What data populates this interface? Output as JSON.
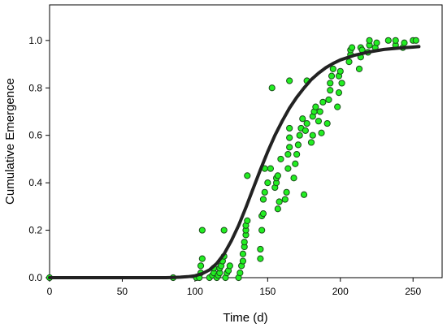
{
  "chart_data": {
    "type": "scatter",
    "title": "",
    "xlabel": "Time (d)",
    "ylabel": "Cumulative Emergence",
    "xlim": [
      0,
      270
    ],
    "ylim": [
      0,
      1.15
    ],
    "x_ticks": [
      0,
      50,
      100,
      150,
      200,
      250
    ],
    "x_tick_labels": [
      "0",
      "50",
      "100",
      "150",
      "200",
      "250"
    ],
    "y_ticks": [
      0,
      0.2,
      0.4,
      0.6,
      0.8,
      1.0
    ],
    "y_tick_labels": [
      "0.0",
      "0.2",
      "0.4",
      "0.6",
      "0.8",
      "1.0"
    ],
    "grid": false,
    "colors": {
      "points_fill": "#22ee22",
      "points_stroke": "#1a4d1a",
      "curve": "#222222"
    },
    "series": [
      {
        "kind": "points",
        "points": [
          [
            0,
            0.0
          ],
          [
            85,
            0.0
          ],
          [
            101,
            0.0
          ],
          [
            103,
            0.0
          ],
          [
            104,
            0.02
          ],
          [
            104,
            0.05
          ],
          [
            105,
            0.08
          ],
          [
            105,
            0.2
          ],
          [
            110,
            0.0
          ],
          [
            112,
            0.01
          ],
          [
            113,
            0.02
          ],
          [
            113,
            0.04
          ],
          [
            115,
            0.0
          ],
          [
            116,
            0.01
          ],
          [
            117,
            0.02
          ],
          [
            117,
            0.04
          ],
          [
            118,
            0.05
          ],
          [
            119,
            0.07
          ],
          [
            120,
            0.09
          ],
          [
            120,
            0.2
          ],
          [
            121,
            0.0
          ],
          [
            122,
            0.02
          ],
          [
            123,
            0.03
          ],
          [
            124,
            0.05
          ],
          [
            130,
            0.0
          ],
          [
            131,
            0.02
          ],
          [
            132,
            0.05
          ],
          [
            133,
            0.07
          ],
          [
            133,
            0.1
          ],
          [
            134,
            0.13
          ],
          [
            134,
            0.15
          ],
          [
            135,
            0.18
          ],
          [
            135,
            0.2
          ],
          [
            135,
            0.22
          ],
          [
            136,
            0.24
          ],
          [
            136,
            0.43
          ],
          [
            145,
            0.08
          ],
          [
            145,
            0.12
          ],
          [
            146,
            0.2
          ],
          [
            146,
            0.26
          ],
          [
            147,
            0.27
          ],
          [
            147,
            0.33
          ],
          [
            148,
            0.36
          ],
          [
            148,
            0.46
          ],
          [
            150,
            0.4
          ],
          [
            152,
            0.46
          ],
          [
            153,
            0.8
          ],
          [
            155,
            0.38
          ],
          [
            156,
            0.4
          ],
          [
            156,
            0.42
          ],
          [
            157,
            0.43
          ],
          [
            157,
            0.29
          ],
          [
            158,
            0.32
          ],
          [
            159,
            0.5
          ],
          [
            162,
            0.33
          ],
          [
            163,
            0.36
          ],
          [
            164,
            0.46
          ],
          [
            164,
            0.52
          ],
          [
            165,
            0.55
          ],
          [
            165,
            0.59
          ],
          [
            165,
            0.63
          ],
          [
            165,
            0.83
          ],
          [
            168,
            0.42
          ],
          [
            169,
            0.48
          ],
          [
            170,
            0.52
          ],
          [
            171,
            0.56
          ],
          [
            172,
            0.6
          ],
          [
            173,
            0.63
          ],
          [
            174,
            0.67
          ],
          [
            175,
            0.35
          ],
          [
            176,
            0.62
          ],
          [
            177,
            0.65
          ],
          [
            177,
            0.83
          ],
          [
            180,
            0.57
          ],
          [
            181,
            0.6
          ],
          [
            181,
            0.68
          ],
          [
            182,
            0.7
          ],
          [
            183,
            0.72
          ],
          [
            185,
            0.66
          ],
          [
            186,
            0.7
          ],
          [
            187,
            0.61
          ],
          [
            188,
            0.74
          ],
          [
            191,
            0.65
          ],
          [
            192,
            0.75
          ],
          [
            193,
            0.79
          ],
          [
            193,
            0.82
          ],
          [
            194,
            0.85
          ],
          [
            195,
            0.88
          ],
          [
            198,
            0.72
          ],
          [
            199,
            0.78
          ],
          [
            199,
            0.85
          ],
          [
            200,
            0.87
          ],
          [
            201,
            0.82
          ],
          [
            206,
            0.91
          ],
          [
            207,
            0.94
          ],
          [
            207,
            0.96
          ],
          [
            208,
            0.97
          ],
          [
            213,
            0.88
          ],
          [
            214,
            0.93
          ],
          [
            214,
            0.97
          ],
          [
            215,
            0.96
          ],
          [
            219,
            0.95
          ],
          [
            220,
            0.98
          ],
          [
            220,
            1.0
          ],
          [
            224,
            0.97
          ],
          [
            225,
            0.99
          ],
          [
            233,
            1.0
          ],
          [
            238,
            0.98
          ],
          [
            238,
            1.0
          ],
          [
            243,
            0.97
          ],
          [
            244,
            0.99
          ],
          [
            250,
            1.0
          ],
          [
            252,
            1.0
          ]
        ]
      },
      {
        "kind": "curve",
        "points": [
          [
            0,
            0.0
          ],
          [
            80,
            0.0
          ],
          [
            85,
            0.001
          ],
          [
            90,
            0.002
          ],
          [
            95,
            0.004
          ],
          [
            100,
            0.008
          ],
          [
            105,
            0.017
          ],
          [
            110,
            0.033
          ],
          [
            115,
            0.06
          ],
          [
            120,
            0.1
          ],
          [
            125,
            0.155
          ],
          [
            130,
            0.22
          ],
          [
            135,
            0.295
          ],
          [
            140,
            0.375
          ],
          [
            145,
            0.455
          ],
          [
            150,
            0.53
          ],
          [
            155,
            0.6
          ],
          [
            160,
            0.66
          ],
          [
            165,
            0.715
          ],
          [
            170,
            0.76
          ],
          [
            175,
            0.8
          ],
          [
            180,
            0.835
          ],
          [
            185,
            0.862
          ],
          [
            190,
            0.885
          ],
          [
            195,
            0.903
          ],
          [
            200,
            0.918
          ],
          [
            210,
            0.938
          ],
          [
            220,
            0.952
          ],
          [
            230,
            0.962
          ],
          [
            240,
            0.968
          ],
          [
            250,
            0.972
          ],
          [
            254,
            0.974
          ]
        ]
      }
    ]
  }
}
